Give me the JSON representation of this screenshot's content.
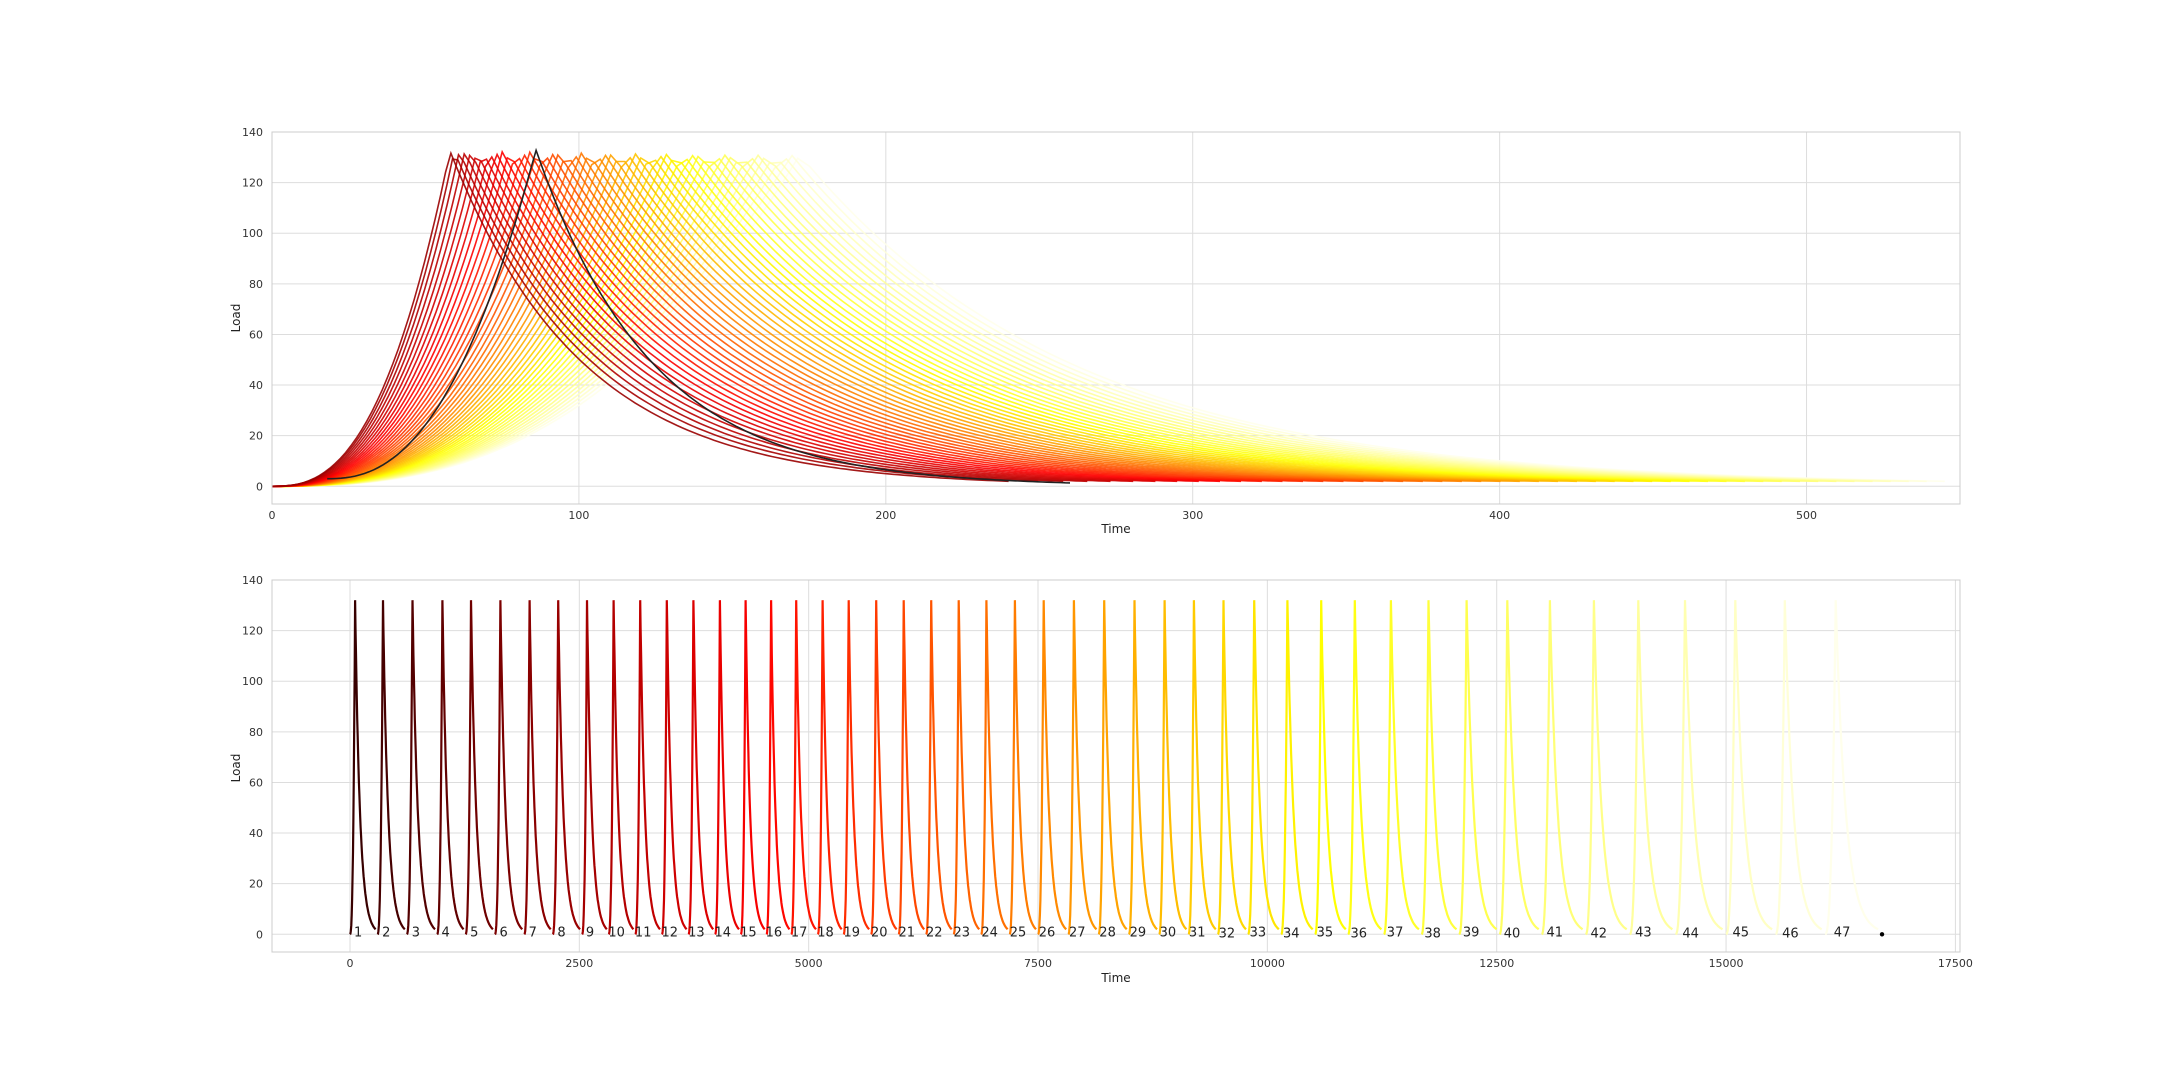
{
  "chart_data": [
    {
      "type": "line",
      "title": "",
      "xlabel": "Time",
      "ylabel": "Load",
      "xlim": [
        0,
        550
      ],
      "ylim": [
        -7,
        140
      ],
      "xticks": [
        0,
        100,
        200,
        300,
        400,
        500
      ],
      "yticks": [
        0,
        20,
        40,
        60,
        80,
        100,
        120,
        140
      ],
      "grid": true,
      "legend": "none",
      "colormap": "hot",
      "series_count": 48,
      "description": "Load curves of all cycles overlaid from a common start; each rises to a peak of about 131 and decays toward 0",
      "peak_load": 131,
      "peak_time_first": 58,
      "peak_time_last": 172,
      "end_time_first": 240,
      "end_time_last": 545,
      "highlight_curve": {
        "start_time": 18,
        "peak_time": 86,
        "peak_load": 133,
        "end_time": 260,
        "color": "#222222"
      }
    },
    {
      "type": "line",
      "title": "",
      "xlabel": "Time",
      "ylabel": "Load",
      "xlim": [
        -850,
        17550
      ],
      "ylim": [
        -7,
        140
      ],
      "xticks": [
        0,
        2500,
        5000,
        7500,
        10000,
        12500,
        15000,
        17500
      ],
      "yticks": [
        0,
        20,
        40,
        60,
        80,
        100,
        120,
        140
      ],
      "grid": true,
      "legend": "none",
      "colormap": "hot",
      "peak_load": 132,
      "cycle_labels": [
        "1",
        "2",
        "3",
        "4",
        "5",
        "6",
        "7",
        "8",
        "9",
        "10",
        "11",
        "12",
        "13",
        "14",
        "15",
        "16",
        "17",
        "18",
        "19",
        "20",
        "21",
        "22",
        "23",
        "24",
        "25",
        "26",
        "27",
        "28",
        "29",
        "30",
        "31",
        "32",
        "33",
        "34",
        "35",
        "36",
        "37",
        "38",
        "39",
        "40",
        "41",
        "42",
        "43",
        "44",
        "45",
        "46",
        "47"
      ],
      "cycle_start_times": [
        0,
        300,
        620,
        950,
        1260,
        1580,
        1900,
        2210,
        2530,
        2820,
        3110,
        3400,
        3690,
        3980,
        4260,
        4540,
        4810,
        5100,
        5380,
        5680,
        5980,
        6280,
        6580,
        6880,
        7190,
        7500,
        7830,
        8160,
        8490,
        8820,
        9140,
        9460,
        9790,
        10150,
        10520,
        10880,
        11270,
        11680,
        12090,
        12530,
        12990,
        13470,
        13950,
        14450,
        15000,
        15540,
        16080
      ],
      "final_marker_time": 16700
    }
  ]
}
